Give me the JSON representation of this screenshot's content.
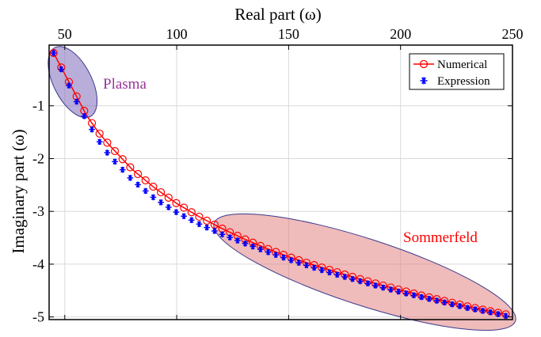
{
  "chart_data": {
    "type": "scatter",
    "xlabel": "Real part (ω)",
    "ylabel": "Imaginary part (ω)",
    "x_axis_position": "top",
    "xlim": [
      43,
      250
    ],
    "ylim": [
      -5.05,
      0.15
    ],
    "xticks": [
      50,
      100,
      150,
      200,
      250
    ],
    "xtick_labels": [
      "50",
      "100",
      "150",
      "200",
      "250"
    ],
    "yticks": [
      -1,
      -2,
      -3,
      -4,
      -5
    ],
    "ytick_labels": [
      "-1",
      "-2",
      "-3",
      "-4",
      "-5"
    ],
    "grid": true,
    "legend_position": "top-right",
    "series": [
      {
        "name": "Numerical",
        "color": "#ff0000",
        "marker": "circle-line",
        "points": [
          [
            45,
            0
          ],
          [
            50,
            -0.4
          ],
          [
            55,
            -0.8
          ],
          [
            60,
            -1.2
          ],
          [
            65,
            -1.5
          ],
          [
            70,
            -1.75
          ],
          [
            80,
            -2.2
          ],
          [
            90,
            -2.55
          ],
          [
            100,
            -2.85
          ],
          [
            110,
            -3.1
          ],
          [
            120,
            -3.32
          ],
          [
            130,
            -3.52
          ],
          [
            140,
            -3.7
          ],
          [
            150,
            -3.86
          ],
          [
            160,
            -4.0
          ],
          [
            170,
            -4.13
          ],
          [
            180,
            -4.26
          ],
          [
            190,
            -4.38
          ],
          [
            200,
            -4.49
          ],
          [
            210,
            -4.6
          ],
          [
            220,
            -4.7
          ],
          [
            230,
            -4.8
          ],
          [
            240,
            -4.89
          ],
          [
            247,
            -4.95
          ]
        ]
      },
      {
        "name": "Expression",
        "color": "#0000ff",
        "marker": "asterisk",
        "points": [
          [
            45,
            0
          ],
          [
            50,
            -0.45
          ],
          [
            55,
            -0.9
          ],
          [
            60,
            -1.3
          ],
          [
            65,
            -1.65
          ],
          [
            70,
            -1.95
          ],
          [
            80,
            -2.4
          ],
          [
            90,
            -2.75
          ],
          [
            100,
            -3.02
          ],
          [
            110,
            -3.24
          ],
          [
            120,
            -3.43
          ],
          [
            130,
            -3.6
          ],
          [
            140,
            -3.76
          ],
          [
            150,
            -3.91
          ],
          [
            160,
            -4.05
          ],
          [
            170,
            -4.18
          ],
          [
            180,
            -4.3
          ],
          [
            190,
            -4.42
          ],
          [
            200,
            -4.53
          ],
          [
            210,
            -4.63
          ],
          [
            220,
            -4.73
          ],
          [
            230,
            -4.83
          ],
          [
            240,
            -4.91
          ],
          [
            247,
            -4.98
          ]
        ]
      }
    ],
    "annotations": [
      {
        "text": "Plasma",
        "color": "#993399",
        "fill": "#8a78c0"
      },
      {
        "text": "Sommerfeld",
        "color": "#ff0000",
        "fill": "#e07878"
      }
    ]
  }
}
